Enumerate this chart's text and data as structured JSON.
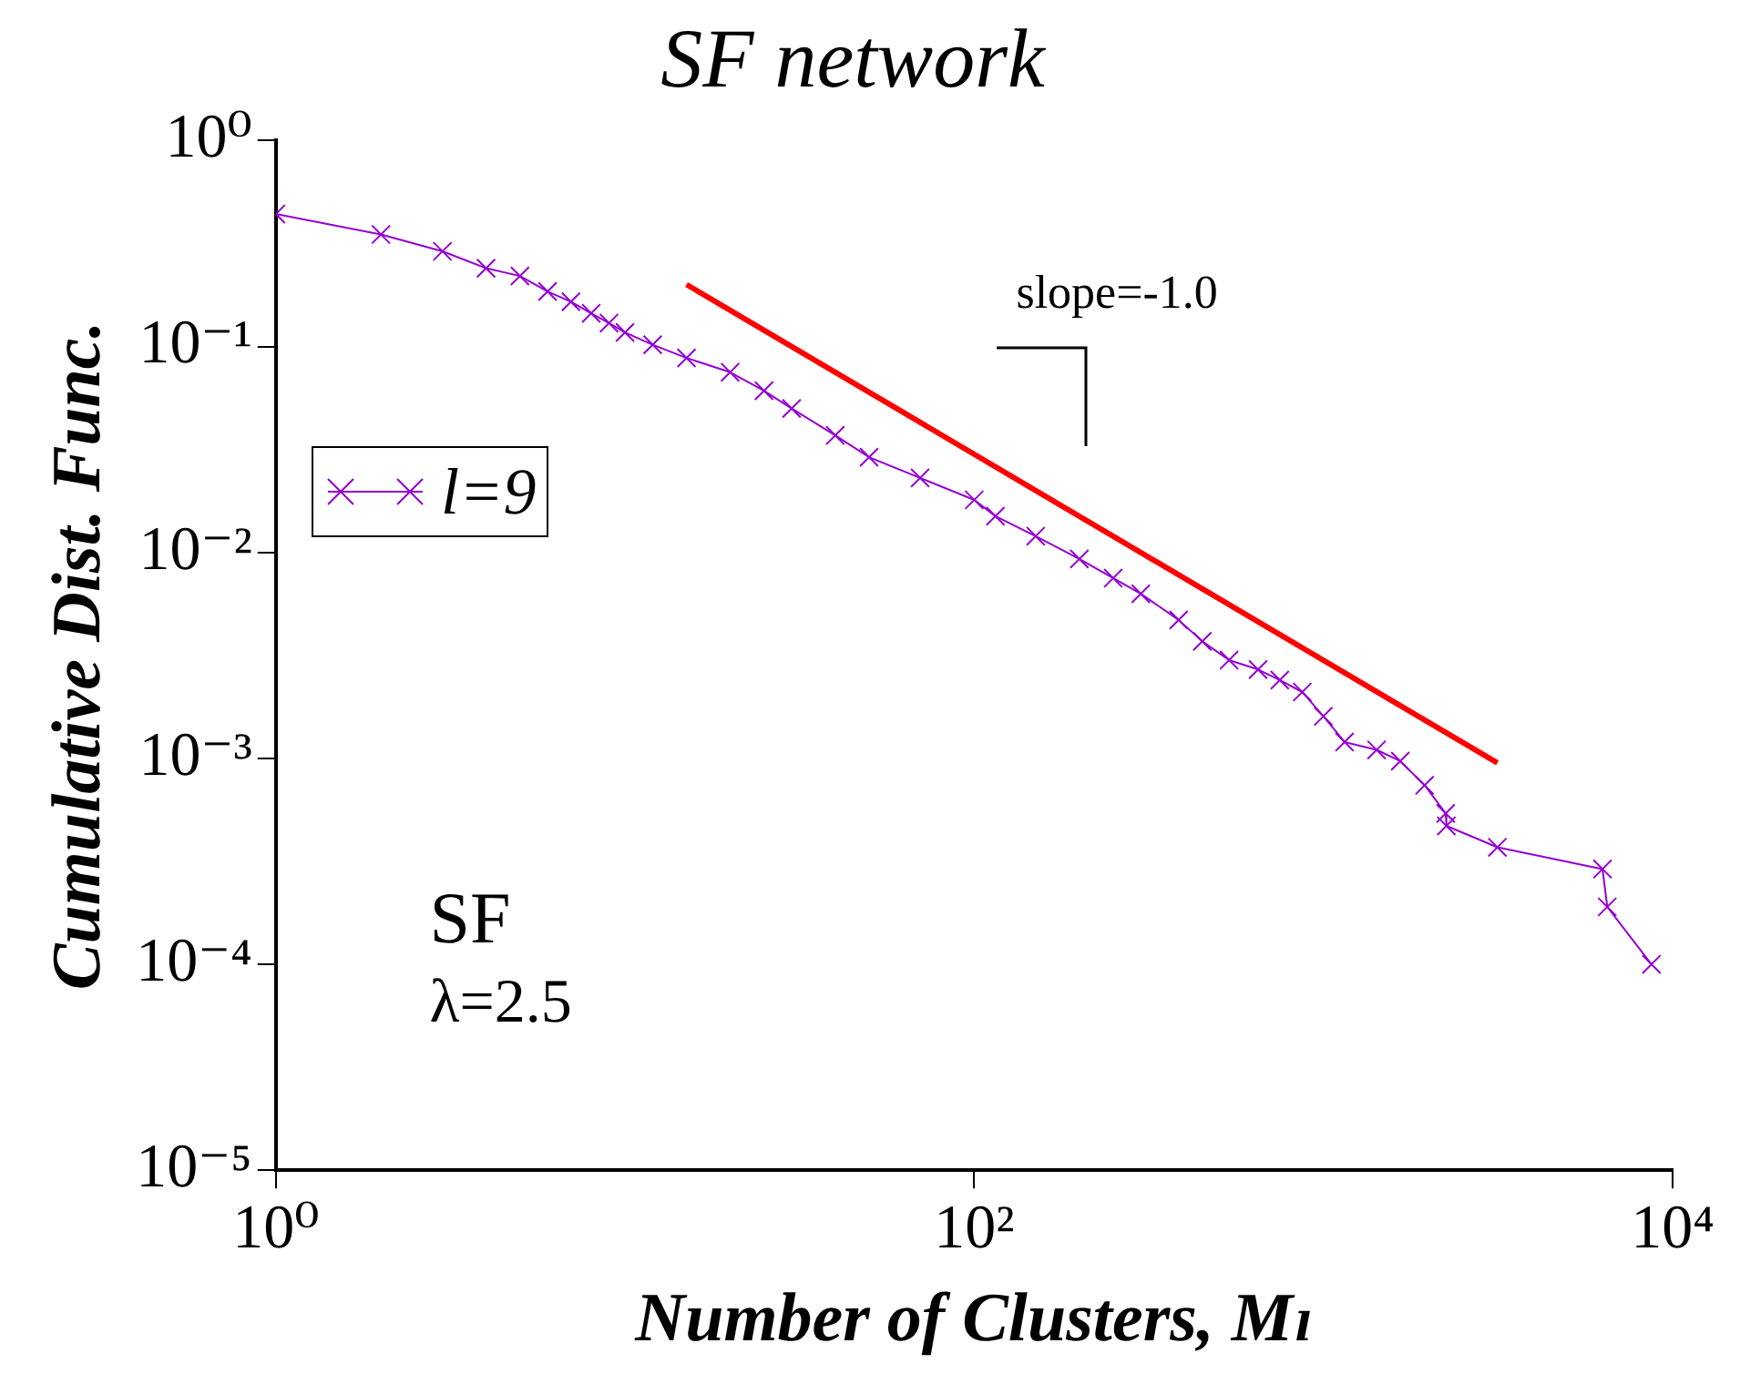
{
  "chart_data": {
    "type": "line",
    "title": "SF network",
    "xlabel": "Number of Clusters, Mₗ",
    "ylabel": "Cumulative Dist. Func.",
    "log": "xy",
    "grid": false,
    "legend": "left",
    "xlim": [
      1,
      10000
    ],
    "ylim": [
      1e-05,
      1
    ],
    "xticks": [
      {
        "value": 1,
        "label": "10⁰"
      },
      {
        "value": 100,
        "label": "10²"
      },
      {
        "value": 10000,
        "label": "10⁴"
      }
    ],
    "yticks": [
      {
        "value": 1e-05,
        "label": "10⁻⁵"
      },
      {
        "value": 0.0001,
        "label": "10⁻⁴"
      },
      {
        "value": 0.001,
        "label": "10⁻³"
      },
      {
        "value": 0.01,
        "label": "10⁻²"
      },
      {
        "value": 0.1,
        "label": "10⁻¹"
      },
      {
        "value": 1,
        "label": "10⁰"
      }
    ],
    "annotations": [
      "slope=-1.0",
      "SF",
      "λ=2.5"
    ],
    "series": [
      {
        "name": "l=9",
        "color": "#9400d3",
        "marker": "cross",
        "x": [
          1,
          2,
          3,
          4,
          5,
          6,
          7,
          8,
          9,
          10,
          12,
          15,
          20,
          25,
          30,
          40,
          50,
          70,
          100,
          115,
          150,
          200,
          250,
          300,
          385,
          450,
          537,
          650,
          750,
          870,
          1000,
          1150,
          1420,
          1660,
          1950,
          2240,
          2250,
          3150,
          6300,
          6500,
          8700
        ],
        "values": [
          0.44,
          0.35,
          0.29,
          0.24,
          0.22,
          0.185,
          0.165,
          0.145,
          0.13,
          0.117,
          0.102,
          0.088,
          0.075,
          0.061,
          0.05,
          0.037,
          0.029,
          0.023,
          0.018,
          0.015,
          0.012,
          0.0093,
          0.0075,
          0.0063,
          0.0047,
          0.0037,
          0.003,
          0.0027,
          0.0024,
          0.0021,
          0.0016,
          0.0012,
          0.0011,
          0.00097,
          0.00074,
          0.00054,
          0.00047,
          0.00037,
          0.00029,
          0.00019,
          0.0001
        ]
      },
      {
        "type": "line",
        "color": "#ff0000",
        "marker": "none",
        "x": [
          15,
          3150
        ],
        "values": [
          0.2,
          0.00095
        ]
      }
    ]
  }
}
